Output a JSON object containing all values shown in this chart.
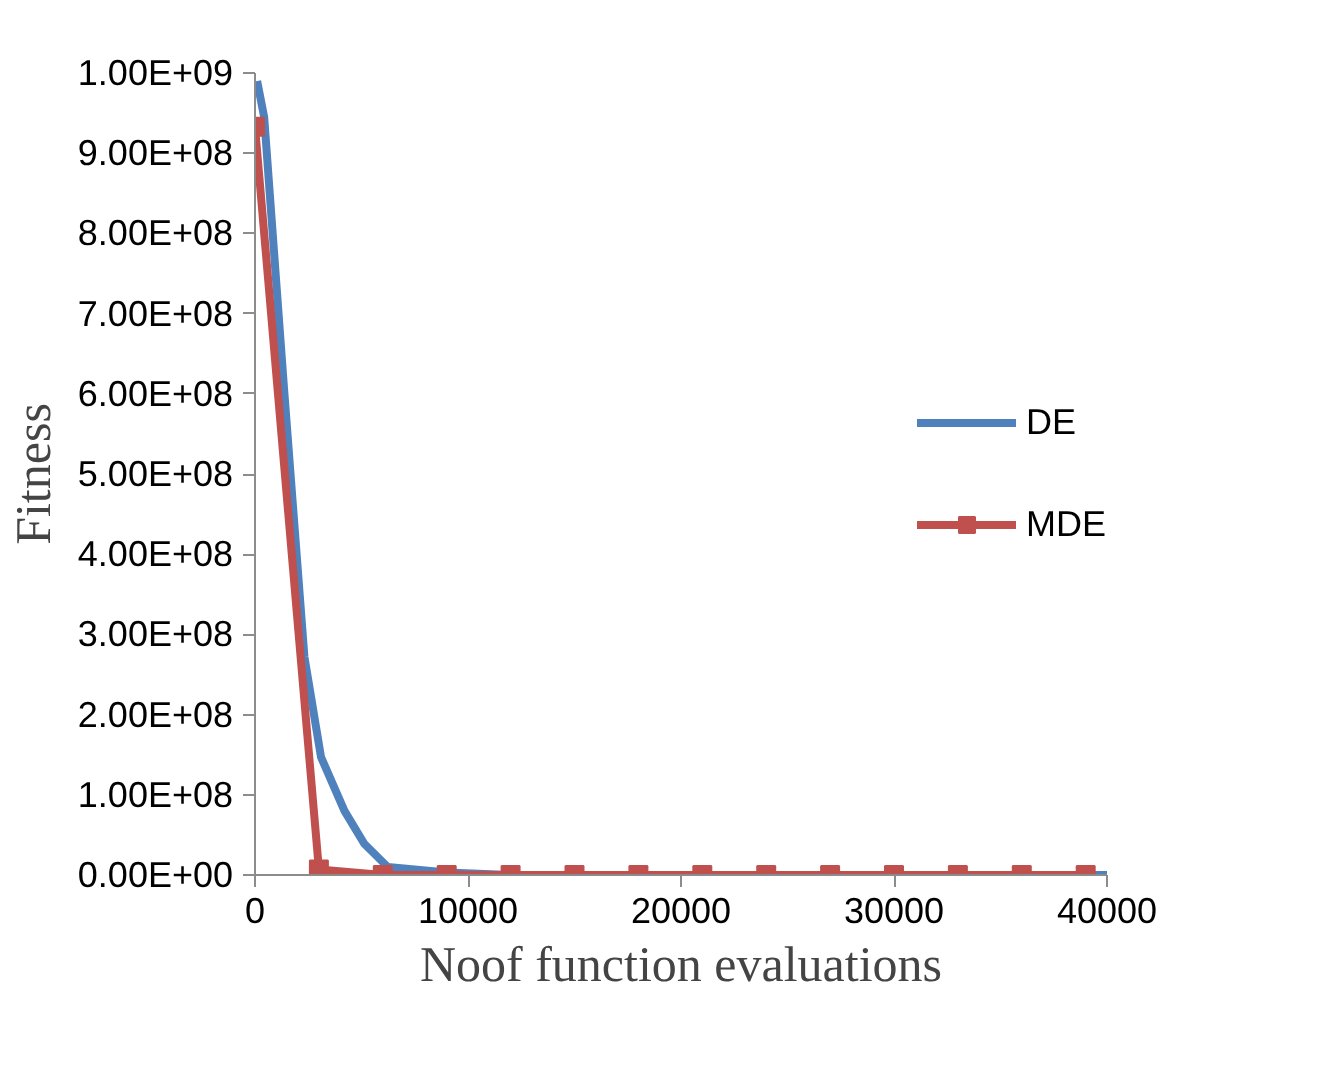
{
  "chart_data": {
    "type": "line",
    "xlabel": "Noof function evaluations",
    "ylabel": "Fitness",
    "xlim": [
      0,
      40000
    ],
    "xticks": [
      0,
      10000,
      20000,
      30000,
      40000
    ],
    "ylim": [
      0,
      1000000000
    ],
    "yticks": [
      {
        "value": 0,
        "label": "0.00E+00"
      },
      {
        "value": 100000000,
        "label": "1.00E+08"
      },
      {
        "value": 200000000,
        "label": "2.00E+08"
      },
      {
        "value": 300000000,
        "label": "3.00E+08"
      },
      {
        "value": 400000000,
        "label": "4.00E+08"
      },
      {
        "value": 500000000,
        "label": "5.00E+08"
      },
      {
        "value": 600000000,
        "label": "6.00E+08"
      },
      {
        "value": 700000000,
        "label": "7.00E+08"
      },
      {
        "value": 800000000,
        "label": "8.00E+08"
      },
      {
        "value": 900000000,
        "label": "9.00E+08"
      },
      {
        "value": 1000000000,
        "label": "1.00E+09"
      }
    ],
    "grid": false,
    "legend": "right",
    "series": [
      {
        "name": "DE",
        "color": "#4f81bd",
        "marker": "none",
        "x": [
          100,
          430,
          1370,
          2320,
          3100,
          4200,
          5130,
          6230,
          9000,
          12000,
          40000
        ],
        "values": [
          990000000,
          945000000,
          604000000,
          272000000,
          147000000,
          80000000,
          39000000,
          10000000,
          3000000,
          0,
          0
        ]
      },
      {
        "name": "MDE",
        "color": "#c0504d",
        "marker": "square",
        "x": [
          0,
          3000,
          6000,
          9000,
          12000,
          15000,
          18000,
          21000,
          24000,
          27000,
          30000,
          33000,
          36000,
          39000
        ],
        "values": [
          933000000,
          7000000,
          0,
          0,
          0,
          0,
          0,
          0,
          0,
          0,
          0,
          0,
          0,
          0
        ]
      }
    ]
  }
}
